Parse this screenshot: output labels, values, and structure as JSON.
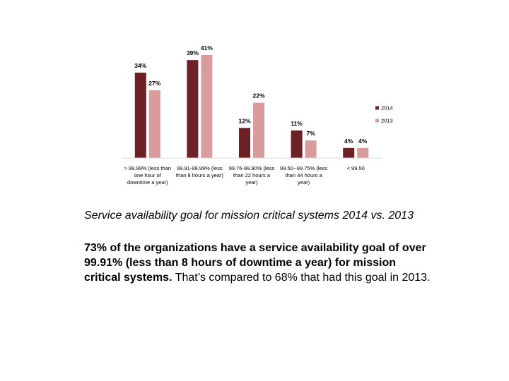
{
  "chart_data": {
    "type": "bar",
    "categories": [
      [
        "> 99.99% (less than",
        "one hour of",
        "downtime a year)"
      ],
      [
        "99.91-99.99% (less",
        "than 8 hours a year)"
      ],
      [
        "99.76-99.90% (less",
        "than 22 hours a",
        "year)"
      ],
      [
        "99.50--99.75% (less",
        "than 44 hours a",
        "year)"
      ],
      [
        "< 99.50"
      ]
    ],
    "series": [
      {
        "name": "2014",
        "values": [
          34,
          39,
          12,
          11,
          4
        ],
        "labels": [
          "34%",
          "39%",
          "12%",
          "11%",
          "4%"
        ],
        "color": "#6b2126"
      },
      {
        "name": "2013",
        "values": [
          27,
          41,
          22,
          7,
          4
        ],
        "labels": [
          "27%",
          "41%",
          "22%",
          "7%",
          "4%"
        ],
        "color": "#d89c9c"
      }
    ],
    "ylim": [
      0,
      41
    ],
    "title": "",
    "xlabel": "",
    "ylabel": "",
    "grid": false,
    "legend": "right"
  },
  "caption": "Service availability goal for mission critical systems 2014 vs. 2013",
  "body": {
    "bold": "73% of the organizations have a service availability goal of over 99.91% (less than 8 hours of downtime a year) for mission critical systems.",
    "normal": " That’s compared to 68% that had this goal in 2013."
  }
}
